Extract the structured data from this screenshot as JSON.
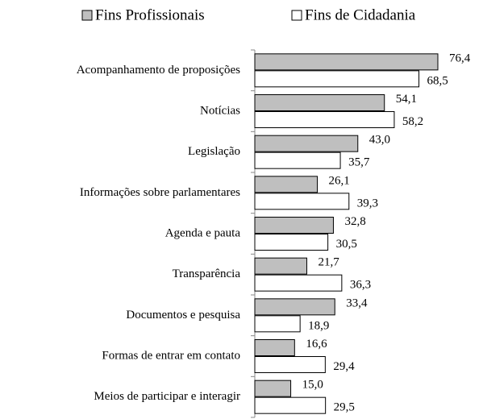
{
  "chart_data": {
    "type": "bar",
    "orientation": "horizontal",
    "categories": [
      "Acompanhamento de proposições",
      "Notícias",
      "Legislação",
      "Informações sobre parlamentares",
      "Agenda e pauta",
      "Transparência",
      "Documentos e pesquisa",
      "Formas de entrar em contato",
      "Meios de participar e interagir"
    ],
    "series": [
      {
        "name": "Fins Profissionais",
        "color": "#bfbfbf",
        "values": [
          76.4,
          54.1,
          43.0,
          26.1,
          32.8,
          21.7,
          33.4,
          16.6,
          15.0
        ],
        "value_labels": [
          "76,4",
          "54,1",
          "43,0",
          "26,1",
          "32,8",
          "21,7",
          "33,4",
          "16,6",
          "15,0"
        ]
      },
      {
        "name": "Fins de Cidadania",
        "color": "#ffffff",
        "values": [
          68.5,
          58.2,
          35.7,
          39.3,
          30.5,
          36.3,
          18.9,
          29.4,
          29.5
        ],
        "value_labels": [
          "68,5",
          "58,2",
          "35,7",
          "39,3",
          "30,5",
          "36,3",
          "18,9",
          "29,4",
          "29,5"
        ]
      }
    ],
    "legend": "top"
  }
}
